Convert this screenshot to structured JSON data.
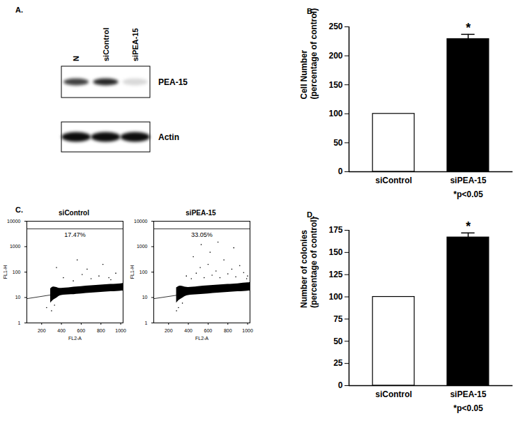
{
  "chart_data": [
    {
      "type": "blot",
      "panel": "A.",
      "lanes": [
        "N",
        "siControl",
        "siPEA-15"
      ],
      "rows": [
        {
          "name": "PEA-15",
          "intensity": [
            0.75,
            0.85,
            0.15
          ]
        },
        {
          "name": "Actin",
          "intensity": [
            0.95,
            0.95,
            0.95
          ]
        }
      ]
    },
    {
      "type": "bar",
      "panel": "B.",
      "categories": [
        "siControl",
        "siPEA-15"
      ],
      "values": [
        100,
        229
      ],
      "errors": [
        null,
        8
      ],
      "colors": [
        "#ffffff",
        "#000000"
      ],
      "ylabel": "Cell Number\n(percentage of control)",
      "ylim": [
        0,
        250
      ],
      "yticks": [
        0,
        50,
        100,
        150,
        200,
        250
      ],
      "annotations": [
        {
          "category": "siPEA-15",
          "text": "*",
          "position": "above_bar"
        },
        {
          "category": "siPEA-15",
          "text": "*p<0.05",
          "position": "below_label"
        }
      ]
    },
    {
      "type": "scatter",
      "panel": "C.",
      "xlabel": "FL2-A",
      "ylabel": "FL1-H",
      "log": "y",
      "xlim": [
        50,
        1024
      ],
      "xticks": [
        200,
        400,
        600,
        800,
        1000
      ],
      "ylim": [
        1,
        10000
      ],
      "yticks": [
        1,
        10,
        100,
        1000,
        10000
      ],
      "subplots": [
        {
          "title": "siControl",
          "gate_percent": {
            "value": 17.47,
            "label": "17.47%"
          },
          "gate": {
            "x": [
              50,
              1024
            ],
            "y": [
              9,
              35
            ],
            "top": 5000
          },
          "cloud": {
            "x": [
              290,
              320,
              360,
              400,
              500,
              600,
              700,
              800,
              900,
              1000,
              1024
            ],
            "low": [
              6,
              8,
              10,
              12,
              13,
              14,
              15,
              16,
              17,
              18,
              18
            ],
            "high": [
              22,
              26,
              24,
              23,
              25,
              27,
              29,
              31,
              33,
              35,
              36
            ]
          },
          "points": {
            "x": [
              420,
              520,
              610,
              700,
              780,
              880,
              950,
              350,
              560,
              820,
              300,
              250,
              330,
              900,
              660
            ],
            "y": [
              60,
              45,
              80,
              55,
              70,
              60,
              90,
              150,
              300,
              200,
              3,
              4,
              5,
              50,
              130
            ]
          }
        },
        {
          "title": "siPEA-15",
          "gate_percent": {
            "value": 33.05,
            "label": "33.05%"
          },
          "gate": {
            "x": [
              50,
              1024
            ],
            "y": [
              9,
              33
            ],
            "top": 5000
          },
          "cloud": {
            "x": [
              280,
              310,
              350,
              400,
              500,
              600,
              700,
              800,
              900,
              1000,
              1024
            ],
            "low": [
              6,
              8,
              10,
              12,
              13,
              14,
              15,
              16,
              17,
              18,
              18
            ],
            "high": [
              24,
              28,
              27,
              25,
              27,
              29,
              31,
              33,
              35,
              38,
              39
            ]
          },
          "points": {
            "x": [
              380,
              430,
              480,
              520,
              560,
              600,
              640,
              680,
              720,
              760,
              800,
              840,
              880,
              920,
              960,
              1000,
              450,
              620,
              700,
              860,
              530,
              300,
              280,
              340,
              990
            ],
            "y": [
              70,
              55,
              90,
              150,
              60,
              200,
              75,
              110,
              60,
              300,
              85,
              130,
              65,
              180,
              95,
              70,
              400,
              600,
              1500,
              900,
              1200,
              4,
              3,
              6,
              55
            ]
          }
        }
      ]
    },
    {
      "type": "bar",
      "panel": "D.",
      "categories": [
        "siControl",
        "siPEA-15"
      ],
      "values": [
        100,
        167
      ],
      "errors": [
        null,
        5
      ],
      "colors": [
        "#ffffff",
        "#000000"
      ],
      "ylabel": "Number of colonies\n(percentage of control)",
      "ylim": [
        0,
        175
      ],
      "yticks": [
        0,
        25,
        50,
        75,
        100,
        125,
        150,
        175
      ],
      "annotations": [
        {
          "category": "siPEA-15",
          "text": "*",
          "position": "above_bar"
        },
        {
          "category": "siPEA-15",
          "text": "*p<0.05",
          "position": "below_label"
        }
      ]
    }
  ]
}
